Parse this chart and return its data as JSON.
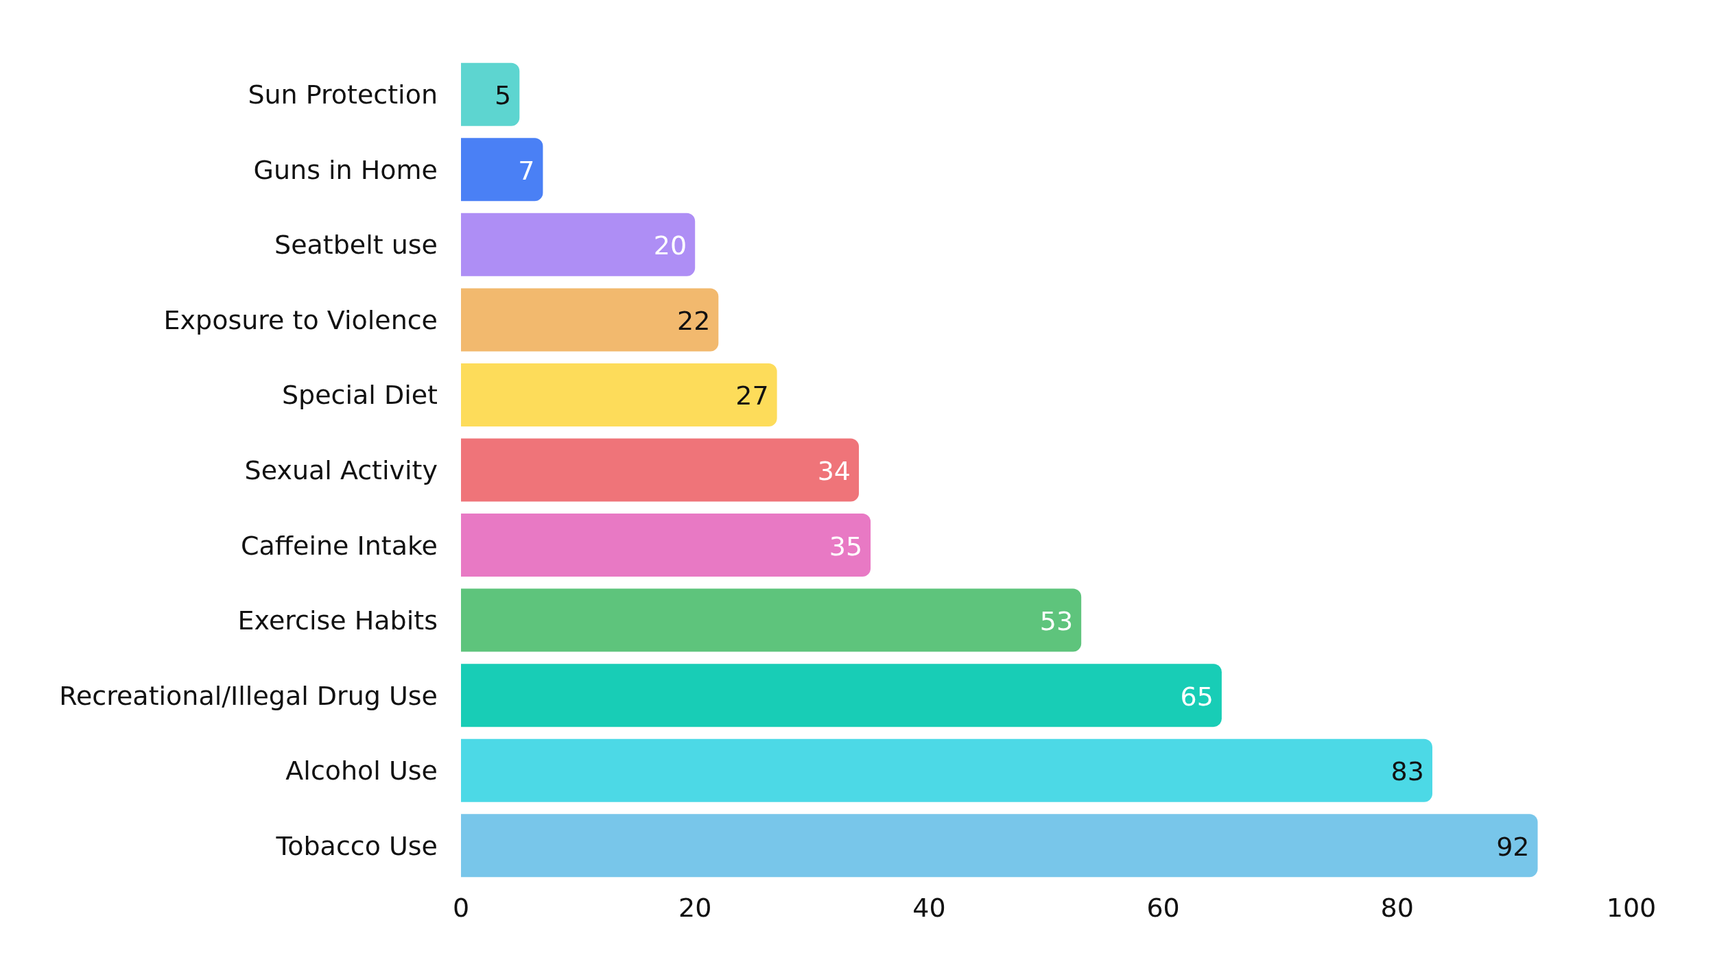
{
  "chart_data": {
    "type": "bar",
    "orientation": "horizontal",
    "categories": [
      "Sun Protection",
      "Guns in Home",
      "Seatbelt use",
      "Exposure to Violence",
      "Special Diet",
      "Sexual Activity",
      "Caffeine Intake",
      "Exercise Habits",
      "Recreational/Illegal Drug Use",
      "Alcohol Use",
      "Tobacco Use"
    ],
    "values": [
      5,
      7,
      20,
      22,
      27,
      34,
      35,
      53,
      65,
      83,
      92
    ],
    "colors": [
      "#5dd5d0",
      "#4a80f5",
      "#ae8ef5",
      "#f2b96e",
      "#fddc5a",
      "#ef7479",
      "#e879c4",
      "#5ec47c",
      "#18cdb6",
      "#4cd9e6",
      "#78c6ea"
    ],
    "xlim": [
      0,
      100
    ],
    "xticks": [
      0,
      20,
      40,
      60,
      80,
      100
    ],
    "data_labels": true,
    "grid": false
  }
}
